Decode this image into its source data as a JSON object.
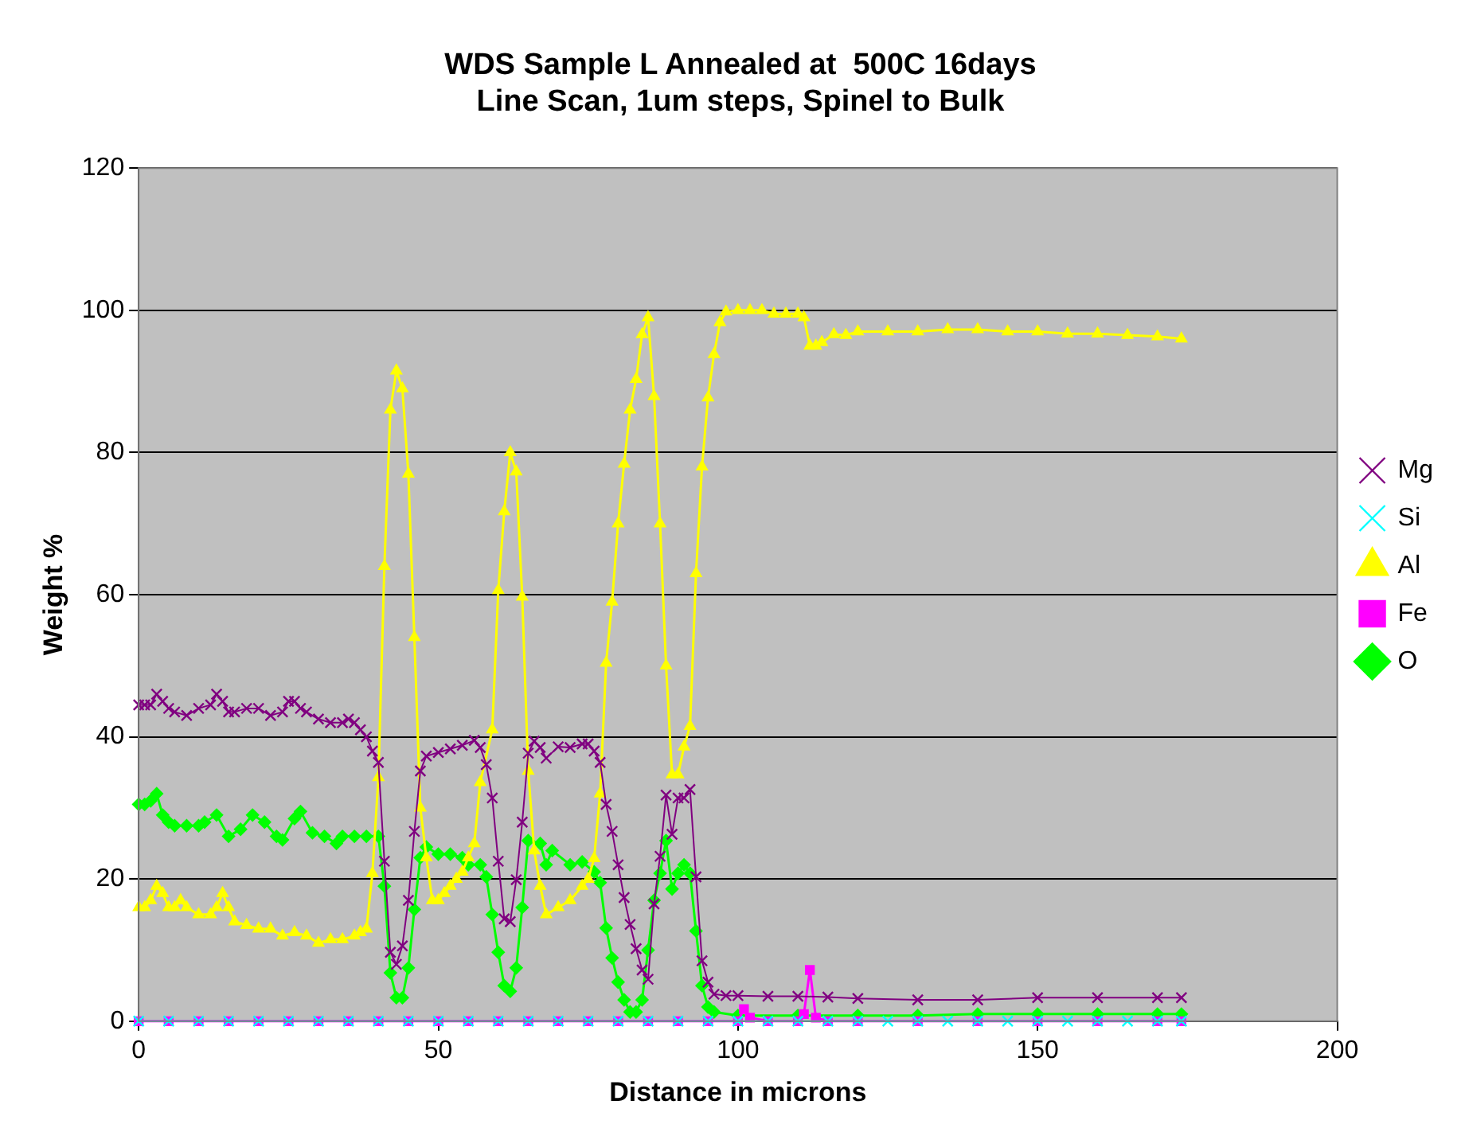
{
  "chart_data": {
    "type": "line",
    "title": "WDS Sample L Annealed at  500C 16days\nLine Scan, 1um steps, Spinel to Bulk",
    "xlabel": "Distance in microns",
    "ylabel": "Weight %",
    "xlim": [
      0,
      200
    ],
    "xticks": [
      0,
      50,
      100,
      150,
      200
    ],
    "ylim": [
      0,
      120
    ],
    "yticks": [
      0,
      20,
      40,
      60,
      80,
      100,
      120
    ],
    "grid": "y",
    "legend": "right",
    "series": [
      {
        "name": "O",
        "color": "#00ff00",
        "marker": "diamond",
        "x": [
          0,
          1,
          2,
          3,
          4,
          5,
          6,
          8,
          10,
          11,
          13,
          15,
          17,
          19,
          21,
          23,
          24,
          26,
          27,
          29,
          31,
          33,
          34,
          36,
          38,
          40,
          41,
          42,
          43,
          44,
          45,
          46,
          47,
          48,
          50,
          52,
          54,
          55,
          57,
          58,
          59,
          60,
          61,
          62,
          63,
          64,
          65,
          67,
          68,
          69,
          72,
          74,
          76,
          77,
          78,
          79,
          80,
          81,
          82,
          83,
          84,
          85,
          86,
          87,
          88,
          89,
          90,
          91,
          92,
          93,
          94,
          95,
          96,
          100,
          110,
          120,
          130,
          140,
          150,
          160,
          170,
          174
        ],
        "values": [
          30.5,
          30.5,
          31,
          32,
          29,
          28,
          27.5,
          27.5,
          27.5,
          28,
          29,
          26,
          27,
          29,
          28,
          26,
          25.5,
          28.5,
          29.5,
          26.5,
          26,
          25,
          26,
          26,
          26,
          26,
          19,
          6.8,
          3.3,
          3.3,
          7.5,
          15.7,
          23,
          24.5,
          23.5,
          23.5,
          23,
          22,
          22,
          20.3,
          15,
          9.7,
          5,
          4.2,
          7.5,
          16,
          25.4,
          25,
          22,
          24,
          22,
          22.4,
          21,
          19.5,
          13.1,
          8.9,
          5.5,
          3,
          1.3,
          1.3,
          3,
          10,
          17,
          20.8,
          25.4,
          18.6,
          20.8,
          22,
          20.8,
          12.7,
          5,
          2,
          1.3,
          0.8,
          0.8,
          0.8,
          0.8,
          1,
          1,
          1,
          1,
          1
        ]
      },
      {
        "name": "Fe",
        "color": "#ff00ff",
        "marker": "square",
        "x": [
          0,
          5,
          10,
          15,
          20,
          25,
          30,
          35,
          40,
          45,
          50,
          55,
          60,
          65,
          70,
          75,
          80,
          85,
          90,
          95,
          100,
          101,
          102,
          105,
          110,
          111,
          112,
          113,
          115,
          120,
          130,
          140,
          150,
          160,
          170,
          174
        ],
        "values": [
          0,
          0,
          0,
          0,
          0,
          0,
          0,
          0,
          0,
          0,
          0,
          0,
          0,
          0,
          0,
          0,
          0,
          0,
          0,
          0,
          0,
          1.7,
          0.5,
          0,
          0,
          1,
          7.2,
          0.5,
          0,
          0,
          0,
          0,
          0,
          0,
          0,
          0
        ]
      },
      {
        "name": "Al",
        "color": "#ffff00",
        "marker": "triangle",
        "x": [
          0,
          1,
          2,
          3,
          4,
          5,
          6,
          7,
          8,
          10,
          12,
          13,
          14,
          15,
          16,
          18,
          20,
          22,
          24,
          26,
          28,
          30,
          32,
          34,
          36,
          37,
          38,
          39,
          40,
          41,
          42,
          43,
          44,
          45,
          46,
          47,
          48,
          49,
          50,
          51,
          52,
          53,
          54,
          55,
          56,
          57,
          59,
          60,
          61,
          62,
          63,
          64,
          65,
          66,
          67,
          68,
          70,
          72,
          74,
          75,
          76,
          77,
          78,
          79,
          80,
          81,
          82,
          83,
          84,
          85,
          86,
          87,
          88,
          89,
          90,
          91,
          92,
          93,
          94,
          95,
          96,
          97,
          98,
          100,
          102,
          104,
          106,
          108,
          110,
          111,
          112,
          113,
          114,
          116,
          118,
          120,
          125,
          130,
          135,
          140,
          145,
          150,
          155,
          160,
          165,
          170,
          174
        ],
        "values": [
          16,
          16,
          17,
          19,
          18,
          16,
          16,
          17,
          16,
          15,
          15,
          16,
          18,
          16,
          14,
          13.5,
          13,
          13,
          12,
          12.5,
          12,
          11,
          11.5,
          11.5,
          12,
          12.5,
          13,
          20.8,
          34.3,
          64,
          86,
          91.5,
          89,
          77,
          54,
          30,
          23,
          17,
          17,
          18,
          19,
          20,
          21,
          23,
          25,
          33.6,
          41,
          60.6,
          71.7,
          80,
          77.3,
          59.7,
          35.2,
          24,
          19,
          15,
          16,
          17,
          19,
          20,
          22.9,
          32,
          50.4,
          59,
          70,
          78.4,
          86,
          90.3,
          96.6,
          99,
          87.9,
          70,
          50,
          34.7,
          34.7,
          38.6,
          41.5,
          63,
          78,
          87.7,
          93.8,
          98.3,
          99.8,
          100,
          100,
          100,
          99.5,
          99.5,
          99.5,
          99,
          95,
          95,
          95.5,
          96.6,
          96.5,
          97,
          97,
          97,
          97.3,
          97.3,
          97,
          97,
          96.7,
          96.7,
          96.5,
          96.3,
          96
        ]
      },
      {
        "name": "Si",
        "color": "#00ffff",
        "marker": "cross",
        "x": [
          0,
          5,
          10,
          15,
          20,
          25,
          30,
          35,
          40,
          45,
          50,
          55,
          60,
          65,
          70,
          75,
          80,
          85,
          90,
          95,
          100,
          105,
          110,
          115,
          120,
          125,
          130,
          135,
          140,
          145,
          150,
          155,
          160,
          165,
          170,
          174
        ],
        "values": [
          0,
          0,
          0,
          0,
          0,
          0,
          0,
          0,
          0,
          0,
          0,
          0,
          0,
          0,
          0,
          0,
          0,
          0,
          0,
          0,
          0,
          0,
          0,
          0,
          0,
          0,
          0,
          0,
          0,
          0,
          0,
          0,
          0,
          0,
          0,
          0
        ]
      },
      {
        "name": "Mg",
        "color": "#800080",
        "marker": "cross",
        "x": [
          0,
          1,
          2,
          3,
          4,
          5,
          6,
          8,
          10,
          12,
          13,
          14,
          15,
          16,
          18,
          20,
          22,
          24,
          25,
          26,
          27,
          28,
          30,
          32,
          34,
          35,
          36,
          37,
          38,
          39,
          40,
          41,
          42,
          43,
          44,
          45,
          46,
          47,
          48,
          50,
          52,
          54,
          56,
          57,
          58,
          59,
          60,
          61,
          62,
          63,
          64,
          65,
          66,
          67,
          68,
          70,
          72,
          74,
          75,
          76,
          77,
          78,
          79,
          80,
          81,
          82,
          83,
          84,
          85,
          86,
          87,
          88,
          89,
          90,
          91,
          92,
          93,
          94,
          95,
          96,
          98,
          100,
          105,
          110,
          115,
          120,
          130,
          140,
          150,
          160,
          170,
          174
        ],
        "values": [
          44.5,
          44.5,
          44.5,
          46,
          45,
          44,
          43.5,
          43,
          44,
          44.5,
          46,
          45,
          43.5,
          43.5,
          44,
          44,
          43,
          43.5,
          45,
          45,
          44,
          43.5,
          42.5,
          42,
          42,
          42.5,
          42,
          41,
          40,
          38,
          36.4,
          22.5,
          9.7,
          8,
          10.6,
          17,
          26.7,
          35.2,
          37.3,
          37.8,
          38.3,
          38.8,
          39.5,
          38.5,
          36.1,
          31.4,
          22.5,
          14.4,
          14,
          19.9,
          28,
          37.7,
          39.4,
          38.5,
          37,
          38.6,
          38.5,
          39,
          39,
          38,
          36.4,
          30.5,
          26.7,
          22,
          17.4,
          13.6,
          10.2,
          7.2,
          5.9,
          16.5,
          23.2,
          31.8,
          26.3,
          31.4,
          31.4,
          32.6,
          20.3,
          8.5,
          5.5,
          3.8,
          3.6,
          3.6,
          3.5,
          3.5,
          3.4,
          3.2,
          3,
          3,
          3.3,
          3.3,
          3.3,
          3.3
        ]
      }
    ]
  }
}
